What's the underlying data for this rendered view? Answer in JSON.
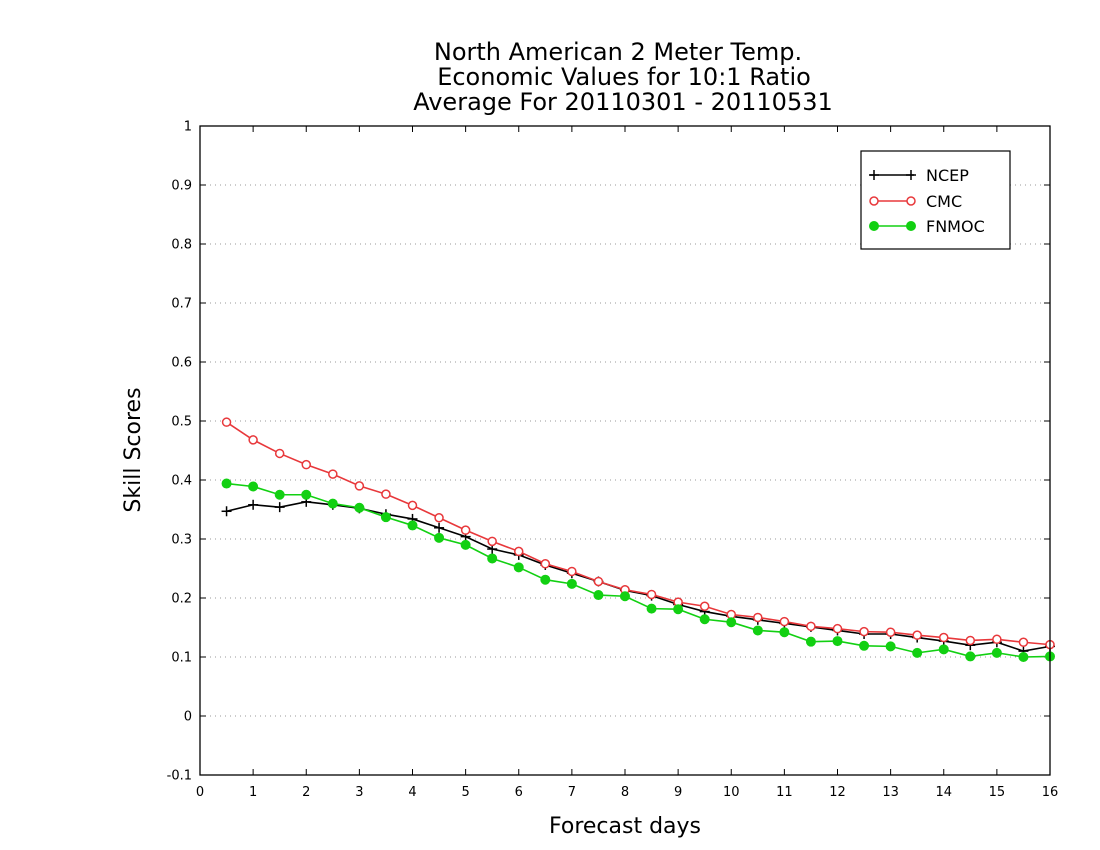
{
  "chart_data": {
    "type": "line",
    "title": [
      "North American 2 Meter Temp.",
      "Economic Values for 10:1 Ratio",
      "Average For 20110301 - 20110531"
    ],
    "xlabel": "Forecast days",
    "ylabel": "Skill Scores",
    "xlim": [
      0,
      16
    ],
    "ylim": [
      -0.1,
      1
    ],
    "xticks": [
      0,
      1,
      2,
      3,
      4,
      5,
      6,
      7,
      8,
      9,
      10,
      11,
      12,
      13,
      14,
      15,
      16
    ],
    "xtick_labels": [
      "0",
      "1",
      "2",
      "3",
      "4",
      "5",
      "6",
      "7",
      "8",
      "9",
      "10",
      "11",
      "12",
      "13",
      "14",
      "15",
      "16"
    ],
    "yticks": [
      -0.1,
      0,
      0.1,
      0.2,
      0.3,
      0.4,
      0.5,
      0.6,
      0.7,
      0.8,
      0.9,
      1
    ],
    "ytick_labels": [
      "-0.1",
      "0",
      "0.1",
      "0.2",
      "0.3",
      "0.4",
      "0.5",
      "0.6",
      "0.7",
      "0.8",
      "0.9",
      "1"
    ],
    "grid": "horizontal-dotted",
    "legend_position": "top-right",
    "x": [
      0.5,
      1,
      1.5,
      2,
      2.5,
      3,
      3.5,
      4,
      4.5,
      5,
      5.5,
      6,
      6.5,
      7,
      7.5,
      8,
      8.5,
      9,
      9.5,
      10,
      10.5,
      11,
      11.5,
      12,
      12.5,
      13,
      13.5,
      14,
      14.5,
      15,
      15.5,
      16
    ],
    "series": [
      {
        "name": "NCEP",
        "color": "#000000",
        "marker": "plus",
        "values": [
          0.347,
          0.358,
          0.354,
          0.363,
          0.358,
          0.352,
          0.342,
          0.334,
          0.319,
          0.304,
          0.283,
          0.273,
          0.256,
          0.242,
          0.228,
          0.213,
          0.204,
          0.189,
          0.177,
          0.169,
          0.163,
          0.157,
          0.151,
          0.145,
          0.139,
          0.139,
          0.133,
          0.127,
          0.12,
          0.125,
          0.11,
          0.118
        ]
      },
      {
        "name": "CMC",
        "color": "#e8383b",
        "marker": "open-circle",
        "values": [
          0.498,
          0.468,
          0.445,
          0.426,
          0.41,
          0.39,
          0.376,
          0.357,
          0.336,
          0.315,
          0.296,
          0.279,
          0.258,
          0.245,
          0.228,
          0.214,
          0.206,
          0.193,
          0.186,
          0.172,
          0.167,
          0.16,
          0.152,
          0.148,
          0.143,
          0.142,
          0.137,
          0.133,
          0.128,
          0.13,
          0.125,
          0.121
        ]
      },
      {
        "name": "FNMOC",
        "color": "#12d012",
        "marker": "filled-circle",
        "values": [
          0.394,
          0.389,
          0.375,
          0.375,
          0.36,
          0.353,
          0.337,
          0.323,
          0.302,
          0.29,
          0.267,
          0.252,
          0.231,
          0.224,
          0.205,
          0.203,
          0.182,
          0.181,
          0.164,
          0.159,
          0.145,
          0.142,
          0.126,
          0.127,
          0.119,
          0.118,
          0.107,
          0.113,
          0.101,
          0.107,
          0.1,
          0.101
        ]
      }
    ]
  }
}
